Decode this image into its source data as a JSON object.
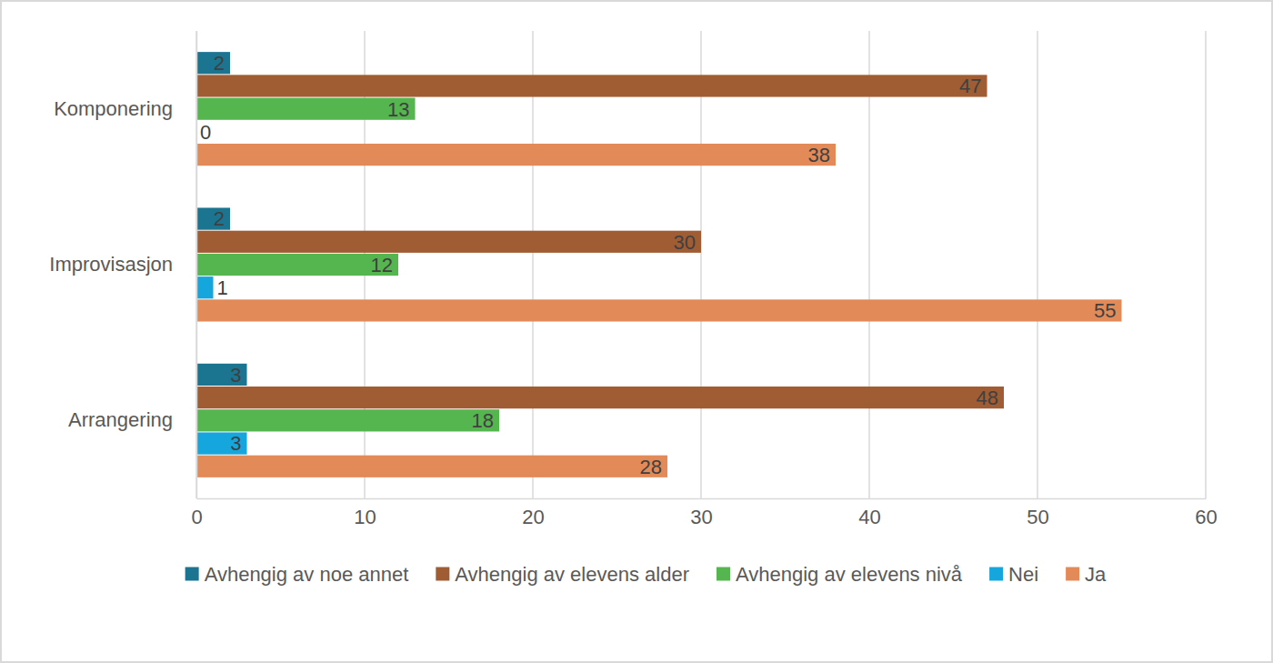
{
  "chart_data": {
    "type": "bar",
    "orientation": "horizontal",
    "categories": [
      "Komponering",
      "Improvisasjon",
      "Arrangering"
    ],
    "series": [
      {
        "name": "Avhengig av noe annet",
        "color": "#1b7490",
        "values": [
          2,
          2,
          3
        ]
      },
      {
        "name": "Avhengig av elevens alder",
        "color": "#a05c32",
        "values": [
          47,
          30,
          48
        ]
      },
      {
        "name": "Avhengig av elevens nivå",
        "color": "#55b54f",
        "values": [
          13,
          12,
          18
        ]
      },
      {
        "name": "Nei",
        "color": "#16a6de",
        "values": [
          0,
          1,
          3
        ]
      },
      {
        "name": "Ja",
        "color": "#e38a59",
        "values": [
          38,
          55,
          28
        ]
      }
    ],
    "xlim": [
      0,
      60
    ],
    "xticks": [
      0,
      10,
      20,
      30,
      40,
      50,
      60
    ],
    "grid": true,
    "legend": "bottom",
    "data_labels": true
  }
}
